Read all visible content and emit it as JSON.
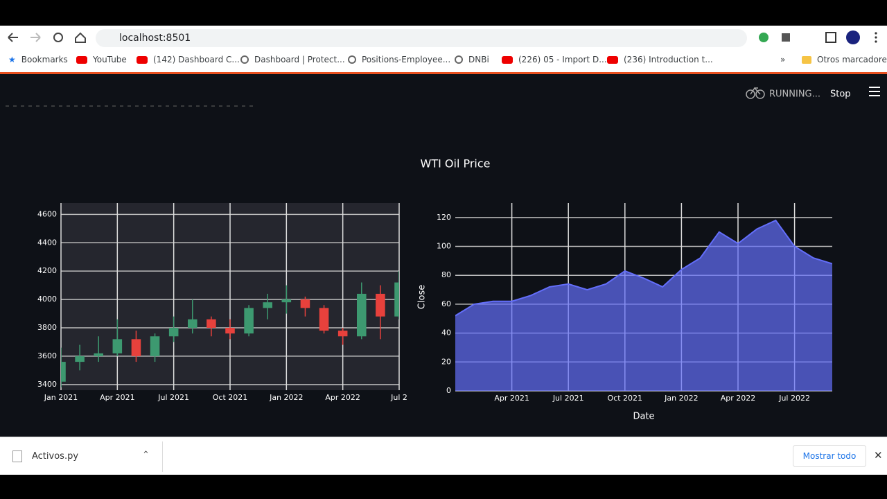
{
  "browser": {
    "url": "localhost:8501",
    "bookmarks": [
      "Bookmarks",
      "YouTube",
      "(142) Dashboard C...",
      "Dashboard | Protect...",
      "Positions-Employee...",
      "DNBi",
      "(226) 05 - Import D...",
      "(236) Introduction t..."
    ],
    "other_bookmarks": "Otros marcadores"
  },
  "app": {
    "status": "RUNNING...",
    "stop": "Stop",
    "title": "WTI Oil Price"
  },
  "chart_data": [
    {
      "type": "candlestick",
      "x": [
        "2021-01",
        "2021-02",
        "2021-03",
        "2021-04",
        "2021-05",
        "2021-06",
        "2021-07",
        "2021-08",
        "2021-09",
        "2021-10",
        "2021-11",
        "2021-12",
        "2022-01",
        "2022-02",
        "2022-03",
        "2022-04",
        "2022-05",
        "2022-06",
        "2022-07"
      ],
      "open": [
        3420,
        3560,
        3600,
        3620,
        3720,
        3600,
        3740,
        3800,
        3860,
        3800,
        3760,
        3940,
        3980,
        4000,
        3940,
        3780,
        3740,
        4040,
        3880
      ],
      "high": [
        3660,
        3680,
        3740,
        3860,
        3780,
        3760,
        3880,
        4000,
        3880,
        3860,
        3960,
        4040,
        4100,
        4020,
        3960,
        3800,
        4120,
        4100,
        4200
      ],
      "low": [
        3380,
        3500,
        3560,
        3600,
        3560,
        3560,
        3700,
        3760,
        3740,
        3720,
        3740,
        3860,
        3900,
        3880,
        3760,
        3680,
        3720,
        3720,
        3860
      ],
      "close": [
        3560,
        3600,
        3620,
        3720,
        3600,
        3740,
        3800,
        3860,
        3800,
        3760,
        3940,
        3980,
        4000,
        3940,
        3780,
        3740,
        4040,
        3880,
        4120
      ],
      "increasing_color": "#3d9970",
      "decreasing_color": "#e8413c",
      "xlim": [
        "2021-01",
        "2022-07"
      ],
      "xticks": [
        {
          "value": "2021-01",
          "label": "Jan 2021"
        },
        {
          "value": "2021-04",
          "label": "Apr 2021"
        },
        {
          "value": "2021-07",
          "label": "Jul 2021"
        },
        {
          "value": "2021-10",
          "label": "Oct 2021"
        },
        {
          "value": "2022-01",
          "label": "Jan 2022"
        },
        {
          "value": "2022-04",
          "label": "Apr 2022"
        },
        {
          "value": "2022-07",
          "label": "Jul 2"
        }
      ],
      "ylim": [
        3360,
        4680
      ],
      "yticks": [
        3400,
        3600,
        3800,
        4000,
        4200,
        4400,
        4600
      ],
      "grid": true
    },
    {
      "type": "area",
      "x": [
        "2021-01",
        "2021-02",
        "2021-03",
        "2021-04",
        "2021-05",
        "2021-06",
        "2021-07",
        "2021-08",
        "2021-09",
        "2021-10",
        "2021-11",
        "2021-12",
        "2022-01",
        "2022-02",
        "2022-03",
        "2022-04",
        "2022-05",
        "2022-06",
        "2022-07",
        "2022-08",
        "2022-09"
      ],
      "values": [
        52,
        60,
        62,
        62,
        66,
        72,
        74,
        70,
        74,
        83,
        78,
        72,
        84,
        92,
        110,
        102,
        112,
        118,
        100,
        92,
        88
      ],
      "color": "#636efa",
      "x_label": "Date",
      "y_label": "Close",
      "xlim": [
        "2021-01",
        "2022-09"
      ],
      "xticks": [
        {
          "value": "2021-04",
          "label": "Apr 2021"
        },
        {
          "value": "2021-07",
          "label": "Jul 2021"
        },
        {
          "value": "2021-10",
          "label": "Oct 2021"
        },
        {
          "value": "2022-01",
          "label": "Jan 2022"
        },
        {
          "value": "2022-04",
          "label": "Apr 2022"
        },
        {
          "value": "2022-07",
          "label": "Jul 2022"
        }
      ],
      "ylim": [
        0,
        130
      ],
      "yticks": [
        0,
        20,
        40,
        60,
        80,
        100,
        120
      ],
      "grid": true
    }
  ],
  "downloads": {
    "file": "Activos.py",
    "show_all": "Mostrar todo"
  }
}
